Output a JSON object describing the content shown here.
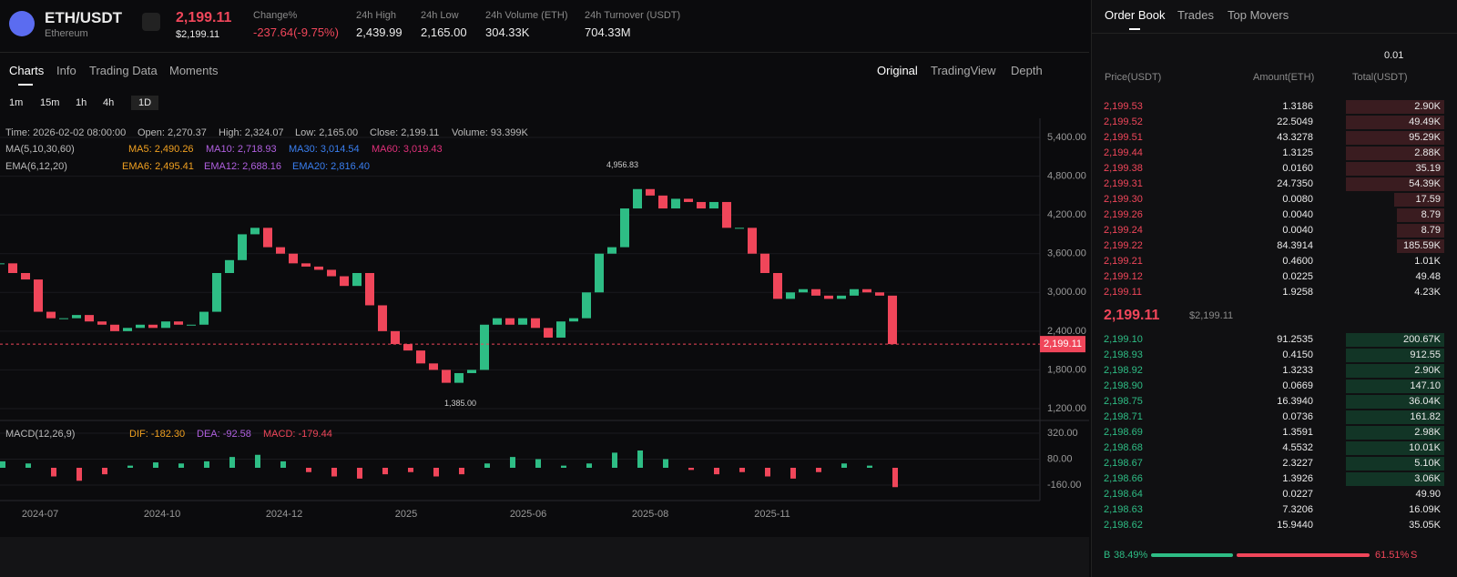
{
  "header": {
    "symbol": "ETH/USDT",
    "name": "Ethereum",
    "price": "2,199.11",
    "price_usd": "$2,199.11",
    "stats": [
      {
        "label": "Change%",
        "value": "-237.64(-9.75%)"
      },
      {
        "label": "24h High",
        "value": "2,439.99"
      },
      {
        "label": "24h Low",
        "value": "2,165.00"
      },
      {
        "label": "24h Volume (ETH)",
        "value": "304.33K"
      },
      {
        "label": "24h Turnover (USDT)",
        "value": "704.33M"
      }
    ]
  },
  "tabs": [
    "Charts",
    "Info",
    "Trading Data",
    "Moments"
  ],
  "views": [
    "Original",
    "TradingView",
    "Depth"
  ],
  "intervals": [
    "1m",
    "15m",
    "1h",
    "4h",
    "1D"
  ],
  "info": [
    "Time: 2026-02-02 08:00:00",
    "Open: 2,270.37",
    "High: 2,324.07",
    "Low: 2,165.00",
    "Close: 2,199.11",
    "Volume: 93.399K"
  ],
  "ma": {
    "label": "MA(5,10,30,60)",
    "items": [
      {
        "text": "MA5: 2,490.26",
        "color": "#f0a020"
      },
      {
        "text": "MA10: 2,718.93",
        "color": "#b060e0"
      },
      {
        "text": "MA30: 3,014.54",
        "color": "#3a7ff0"
      },
      {
        "text": "MA60: 3,019.43",
        "color": "#e0307a"
      }
    ]
  },
  "ema": {
    "label": "EMA(6,12,20)",
    "items": [
      {
        "text": "EMA6: 2,495.41",
        "color": "#f0a020"
      },
      {
        "text": "EMA12: 2,688.16",
        "color": "#b060e0"
      },
      {
        "text": "EMA20: 2,816.40",
        "color": "#3a7ff0"
      }
    ]
  },
  "chart_data": {
    "type": "candlestick",
    "ylim": [
      1200,
      5400
    ],
    "yticks": [
      {
        "value": 5400,
        "label": "5,400.00"
      },
      {
        "value": 4800,
        "label": "4,800.00"
      },
      {
        "value": 4200,
        "label": "4,200.00"
      },
      {
        "value": 3600,
        "label": "3,600.00"
      },
      {
        "value": 3000,
        "label": "3,000.00"
      },
      {
        "value": 2400,
        "label": "2,400.00"
      },
      {
        "value": 1800,
        "label": "1,800.00"
      },
      {
        "value": 1200,
        "label": "1,200.00"
      }
    ],
    "xticks": [
      "2024-07",
      "2024-10",
      "2024-12",
      "2025",
      "2025-06",
      "2025-08",
      "2025-11"
    ],
    "up_color": "#2ebd85",
    "down_color": "#f0465a",
    "closes": [
      3450,
      3300,
      3200,
      2700,
      2600,
      2600,
      2650,
      2550,
      2500,
      2400,
      2450,
      2500,
      2450,
      2550,
      2500,
      2500,
      2700,
      3300,
      3500,
      3900,
      4000,
      3700,
      3600,
      3450,
      3400,
      3350,
      3250,
      3100,
      3300,
      2800,
      2400,
      2200,
      2100,
      1900,
      1800,
      1600,
      1750,
      1800,
      2500,
      2600,
      2500,
      2600,
      2450,
      2300,
      2550,
      2600,
      3000,
      3600,
      3700,
      4300,
      4600,
      4500,
      4300,
      4450,
      4400,
      4300,
      4400,
      4000,
      4000,
      3600,
      3300,
      2900,
      3000,
      3050,
      2950,
      2900,
      2950,
      3050,
      3000,
      2950,
      2199
    ],
    "high_label": {
      "value": 4956.83,
      "label": "4,956.83"
    },
    "low_label": {
      "value": 1385,
      "label": "1,385.00"
    },
    "last_label": {
      "value": 2199.11,
      "label": "2,199.11"
    },
    "macd": {
      "label": "MACD(12,26,9)",
      "dif": "DIF: -182.30",
      "dea": "DEA: -92.58",
      "macd": "MACD: -179.44",
      "ylim": [
        -260,
        380
      ],
      "yticks": [
        {
          "value": 320,
          "label": "320.00"
        },
        {
          "value": 80,
          "label": "80.00"
        },
        {
          "value": -160,
          "label": "-160.00"
        }
      ],
      "values": [
        60,
        40,
        -80,
        -120,
        -60,
        20,
        50,
        40,
        60,
        100,
        120,
        60,
        -40,
        -80,
        -100,
        -60,
        -40,
        -80,
        -60,
        40,
        100,
        80,
        20,
        40,
        140,
        160,
        80,
        -20,
        -60,
        -40,
        -80,
        -100,
        -40,
        40,
        20,
        -179
      ]
    }
  },
  "orderbook": {
    "tabs": [
      "Order Book",
      "Trades",
      "Top Movers"
    ],
    "precision": "0.01",
    "columns": [
      "Price(USDT)",
      "Amount(ETH)",
      "Total(USDT)"
    ],
    "asks": [
      [
        "2,199.53",
        "1.3186",
        "2.90K"
      ],
      [
        "2,199.52",
        "22.5049",
        "49.49K"
      ],
      [
        "2,199.51",
        "43.3278",
        "95.29K"
      ],
      [
        "2,199.44",
        "1.3125",
        "2.88K"
      ],
      [
        "2,199.38",
        "0.0160",
        "35.19"
      ],
      [
        "2,199.31",
        "24.7350",
        "54.39K"
      ],
      [
        "2,199.30",
        "0.0080",
        "17.59"
      ],
      [
        "2,199.26",
        "0.0040",
        "8.79"
      ],
      [
        "2,199.24",
        "0.0040",
        "8.79"
      ],
      [
        "2,199.22",
        "84.3914",
        "185.59K"
      ],
      [
        "2,199.21",
        "0.4600",
        "1.01K"
      ],
      [
        "2,199.12",
        "0.0225",
        "49.48"
      ],
      [
        "2,199.11",
        "1.9258",
        "4.23K"
      ]
    ],
    "mid": "2,199.11",
    "mid_usd": "$2,199.11",
    "bids": [
      [
        "2,199.10",
        "91.2535",
        "200.67K"
      ],
      [
        "2,198.93",
        "0.4150",
        "912.55"
      ],
      [
        "2,198.92",
        "1.3233",
        "2.90K"
      ],
      [
        "2,198.90",
        "0.0669",
        "147.10"
      ],
      [
        "2,198.75",
        "16.3940",
        "36.04K"
      ],
      [
        "2,198.71",
        "0.0736",
        "161.82"
      ],
      [
        "2,198.69",
        "1.3591",
        "2.98K"
      ],
      [
        "2,198.68",
        "4.5532",
        "10.01K"
      ],
      [
        "2,198.67",
        "2.3227",
        "5.10K"
      ],
      [
        "2,198.66",
        "1.3926",
        "3.06K"
      ],
      [
        "2,198.64",
        "0.0227",
        "49.90"
      ],
      [
        "2,198.63",
        "7.3206",
        "16.09K"
      ],
      [
        "2,198.62",
        "15.9440",
        "35.05K"
      ]
    ],
    "buy": "B",
    "sell": "S",
    "buy_ratio": {
      "value": 38.49,
      "label": "38.49%"
    },
    "sell_ratio": {
      "value": 61.51,
      "label": "61.51%"
    }
  }
}
